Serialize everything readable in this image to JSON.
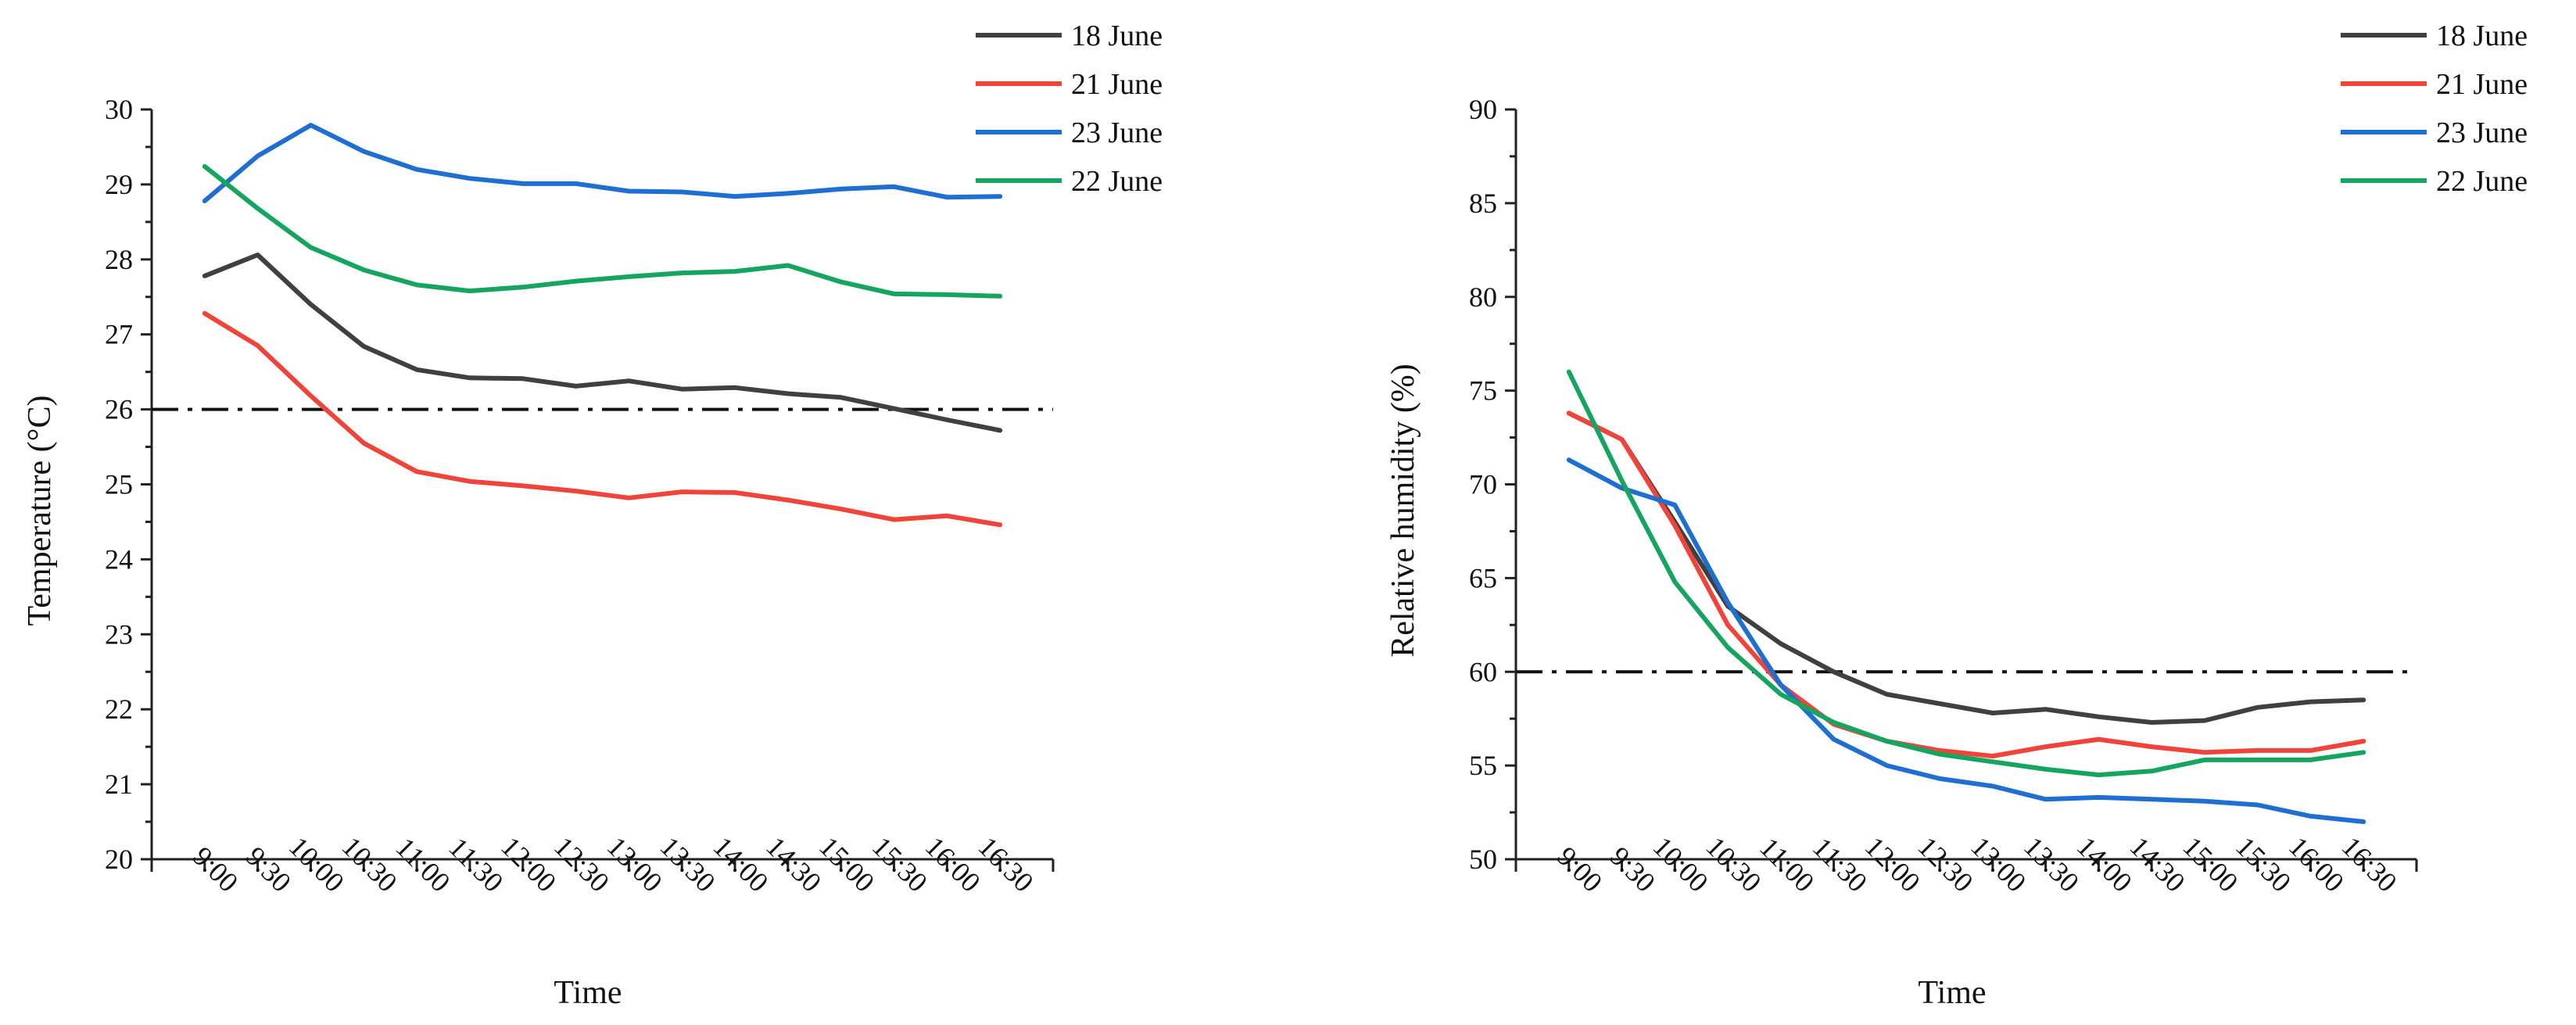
{
  "chart_data": [
    {
      "type": "line",
      "xlabel": "Time",
      "ylabel": "Temperature (°C)",
      "categories": [
        "9:00",
        "9:30",
        "10:00",
        "10:30",
        "11:00",
        "11:30",
        "12:00",
        "12:30",
        "13:00",
        "13:30",
        "14:00",
        "14:30",
        "15:00",
        "15:30",
        "16:00",
        "16:30"
      ],
      "ylim": [
        20,
        30
      ],
      "yticks": [
        "20",
        "21",
        "22",
        "23",
        "24",
        "25",
        "26",
        "27",
        "28",
        "29",
        "30"
      ],
      "reference_line": 26,
      "legend_position": "top-right",
      "series": [
        {
          "name": "18 June",
          "color": "#404040",
          "values": [
            27.78,
            28.06,
            27.4,
            26.84,
            26.53,
            26.42,
            26.41,
            26.31,
            26.38,
            26.27,
            26.29,
            26.21,
            26.16,
            26.01,
            25.86,
            25.72
          ]
        },
        {
          "name": "21 June",
          "color": "#f0443a",
          "values": [
            27.28,
            26.85,
            26.18,
            25.55,
            25.17,
            25.04,
            24.98,
            24.91,
            24.82,
            24.9,
            24.89,
            24.79,
            24.67,
            24.53,
            24.58,
            24.46
          ]
        },
        {
          "name": "23 June",
          "color": "#1f6fd0",
          "values": [
            28.78,
            29.38,
            29.79,
            29.44,
            29.2,
            29.08,
            29.01,
            29.01,
            28.91,
            28.9,
            28.84,
            28.88,
            28.94,
            28.97,
            28.83,
            28.84
          ]
        },
        {
          "name": "22 June",
          "color": "#16a560",
          "values": [
            29.24,
            28.68,
            28.16,
            27.86,
            27.66,
            27.58,
            27.63,
            27.71,
            27.77,
            27.82,
            27.84,
            27.92,
            27.7,
            27.54,
            27.53,
            27.51
          ]
        }
      ]
    },
    {
      "type": "line",
      "xlabel": "Time",
      "ylabel": "Relative humidity (%)",
      "categories": [
        "9:00",
        "9:30",
        "10:00",
        "10:30",
        "11:00",
        "11:30",
        "12:00",
        "12:30",
        "13:00",
        "13:30",
        "14:00",
        "14:30",
        "15:00",
        "15:30",
        "16:00",
        "16:30"
      ],
      "ylim": [
        50,
        90
      ],
      "yticks": [
        "50",
        "55",
        "60",
        "65",
        "70",
        "75",
        "80",
        "85",
        "90"
      ],
      "reference_line": 60,
      "legend_position": "top-right",
      "series": [
        {
          "name": "18 June",
          "color": "#404040",
          "values": [
            73.8,
            72.4,
            68.0,
            63.5,
            61.5,
            60.0,
            58.8,
            58.3,
            57.8,
            58.0,
            57.6,
            57.3,
            57.4,
            58.1,
            58.4,
            58.5
          ]
        },
        {
          "name": "21 June",
          "color": "#f0443a",
          "values": [
            73.8,
            72.4,
            67.8,
            62.5,
            59.3,
            57.2,
            56.3,
            55.8,
            55.5,
            56.0,
            56.4,
            56.0,
            55.7,
            55.8,
            55.8,
            56.3
          ]
        },
        {
          "name": "23 June",
          "color": "#1f6fd0",
          "values": [
            71.3,
            69.8,
            68.9,
            63.7,
            59.3,
            56.4,
            55.0,
            54.3,
            53.9,
            53.2,
            53.3,
            53.2,
            53.1,
            52.9,
            52.3,
            52.0
          ]
        },
        {
          "name": "22 June",
          "color": "#16a560",
          "values": [
            76.0,
            70.2,
            64.8,
            61.3,
            58.8,
            57.3,
            56.3,
            55.6,
            55.2,
            54.8,
            54.5,
            54.7,
            55.3,
            55.3,
            55.3,
            55.7
          ]
        }
      ]
    }
  ]
}
